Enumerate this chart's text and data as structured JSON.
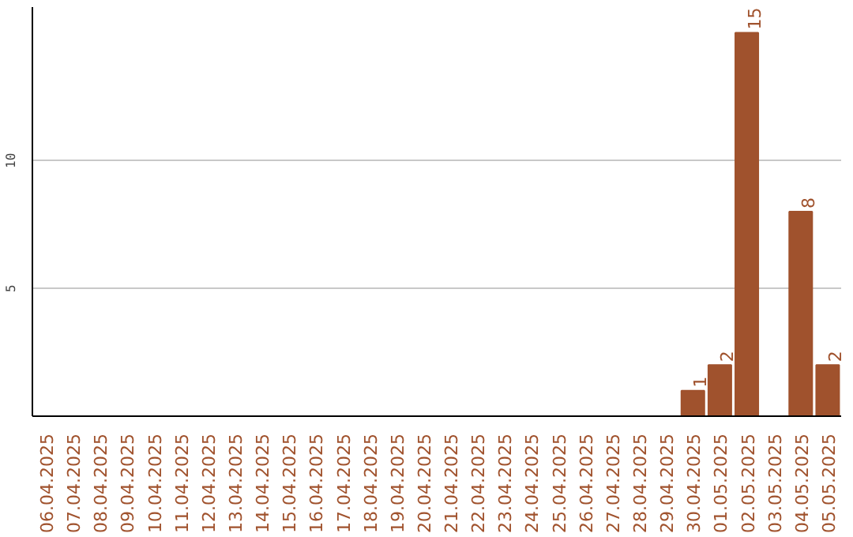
{
  "chart_data": {
    "type": "bar",
    "categories": [
      "06.04.2025",
      "07.04.2025",
      "08.04.2025",
      "09.04.2025",
      "10.04.2025",
      "11.04.2025",
      "12.04.2025",
      "13.04.2025",
      "14.04.2025",
      "15.04.2025",
      "16.04.2025",
      "17.04.2025",
      "18.04.2025",
      "19.04.2025",
      "20.04.2025",
      "21.04.2025",
      "22.04.2025",
      "23.04.2025",
      "24.04.2025",
      "25.04.2025",
      "26.04.2025",
      "27.04.2025",
      "28.04.2025",
      "29.04.2025",
      "30.04.2025",
      "01.05.2025",
      "02.05.2025",
      "03.05.2025",
      "04.05.2025",
      "05.05.2025"
    ],
    "values": [
      0,
      0,
      0,
      0,
      0,
      0,
      0,
      0,
      0,
      0,
      0,
      0,
      0,
      0,
      0,
      0,
      0,
      0,
      0,
      0,
      0,
      0,
      0,
      0,
      1,
      2,
      15,
      0,
      8,
      2
    ],
    "value_labels": [
      null,
      null,
      null,
      null,
      null,
      null,
      null,
      null,
      null,
      null,
      null,
      null,
      null,
      null,
      null,
      null,
      null,
      null,
      null,
      null,
      null,
      null,
      null,
      null,
      "1",
      "2",
      "15",
      null,
      "8",
      "2"
    ],
    "color": "#a0522d",
    "ylim": [
      0,
      16
    ],
    "yticks": [
      5,
      10
    ],
    "grid": "y"
  }
}
